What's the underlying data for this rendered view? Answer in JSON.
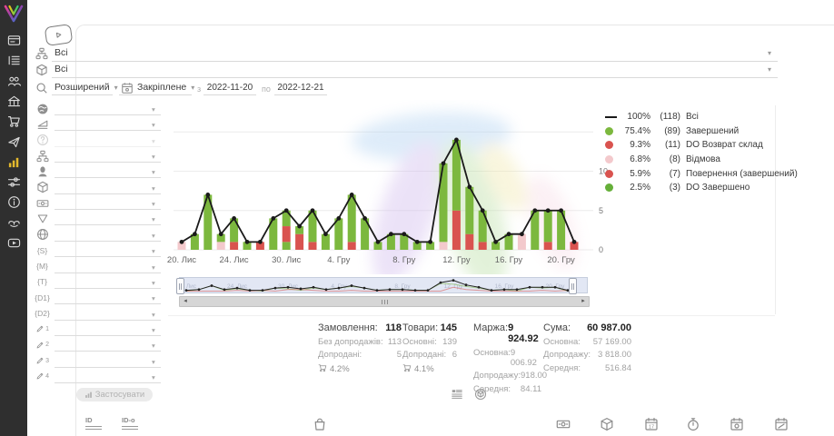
{
  "sidebar": {
    "items": [
      {
        "name": "dashboard",
        "icon": "browser",
        "active": false
      },
      {
        "name": "orders-list",
        "icon": "list",
        "active": false
      },
      {
        "name": "customers",
        "icon": "users",
        "active": false
      },
      {
        "name": "company",
        "icon": "building",
        "active": false
      },
      {
        "name": "sales",
        "icon": "cart",
        "active": false
      },
      {
        "name": "campaigns",
        "icon": "send",
        "active": false
      },
      {
        "name": "analytics",
        "icon": "chart",
        "active": true
      },
      {
        "name": "settings",
        "icon": "sliders",
        "active": false
      },
      {
        "name": "info",
        "icon": "info",
        "active": false
      },
      {
        "name": "partners",
        "icon": "hands",
        "active": false
      },
      {
        "name": "video-tutorials",
        "icon": "video",
        "active": false
      }
    ]
  },
  "topbar": {
    "selects": [
      {
        "icon": "sitemap",
        "value": "Всі"
      },
      {
        "icon": "cube",
        "value": "Всі"
      }
    ],
    "search": {
      "mode": "Розширений",
      "period": "Закріплене",
      "from_label": "з",
      "date_from": "2022-11-20",
      "to_label": "по",
      "date_to": "2022-12-21"
    }
  },
  "filters": {
    "apply_label": "Застосувати",
    "rows": [
      {
        "icon": "globe-solid",
        "disabled": false
      },
      {
        "icon": "ramp",
        "disabled": false
      },
      {
        "icon": "question",
        "disabled": true
      },
      {
        "icon": "sitemap",
        "disabled": false
      },
      {
        "icon": "person",
        "disabled": false
      },
      {
        "icon": "cube",
        "disabled": false
      },
      {
        "icon": "banknote",
        "disabled": false
      },
      {
        "icon": "funnel",
        "disabled": false
      },
      {
        "icon": "globe-wire",
        "disabled": false
      },
      {
        "icon": "token",
        "token": "{S}",
        "disabled": false
      },
      {
        "icon": "token",
        "token": "{M}",
        "disabled": false
      },
      {
        "icon": "token",
        "token": "{T}",
        "disabled": false
      },
      {
        "icon": "token",
        "token": "{D1}",
        "disabled": false
      },
      {
        "icon": "token",
        "token": "{D2}",
        "disabled": false
      },
      {
        "icon": "pencil",
        "sub": "1",
        "disabled": false
      },
      {
        "icon": "pencil",
        "sub": "2",
        "disabled": false
      },
      {
        "icon": "pencil",
        "sub": "3",
        "disabled": false
      },
      {
        "icon": "pencil",
        "sub": "4",
        "disabled": false
      }
    ]
  },
  "chart_data": {
    "type": "bar",
    "stacked": true,
    "ylim": [
      0,
      15
    ],
    "y_ticks": [
      "0",
      "5",
      "10"
    ],
    "grid": true,
    "legend_position": "right",
    "colors": {
      "green": "#7CB83E",
      "red": "#D9534F",
      "pink": "#F3C9CC",
      "line": "#1a1a1a"
    },
    "x_tick_labels": [
      {
        "i": 0,
        "label": "20. Лис"
      },
      {
        "i": 4,
        "label": "24. Лис"
      },
      {
        "i": 8,
        "label": "30. Лис"
      },
      {
        "i": 12,
        "label": "4. Гру"
      },
      {
        "i": 17,
        "label": "8. Гру"
      },
      {
        "i": 21,
        "label": "12. Гру"
      },
      {
        "i": 25,
        "label": "16. Гру"
      },
      {
        "i": 29,
        "label": "20. Гру"
      }
    ],
    "line_series": {
      "name": "Всі",
      "values": [
        1,
        2,
        7,
        2,
        4,
        1,
        1,
        4,
        5,
        3,
        5,
        2,
        4,
        7,
        4,
        1,
        2,
        2,
        1,
        1,
        11,
        14,
        8,
        5,
        1,
        2,
        2,
        5,
        5,
        5,
        1
      ]
    },
    "bar_segments": [
      [
        [
          "pink",
          1
        ]
      ],
      [
        [
          "green",
          2
        ]
      ],
      [
        [
          "green",
          7
        ]
      ],
      [
        [
          "pink",
          1
        ],
        [
          "green",
          1
        ]
      ],
      [
        [
          "red",
          1
        ],
        [
          "green",
          3
        ]
      ],
      [
        [
          "green",
          1
        ]
      ],
      [
        [
          "red",
          1
        ]
      ],
      [
        [
          "green",
          4
        ]
      ],
      [
        [
          "green",
          1
        ],
        [
          "red",
          2
        ],
        [
          "green",
          2
        ]
      ],
      [
        [
          "red",
          2
        ],
        [
          "green",
          1
        ]
      ],
      [
        [
          "red",
          1
        ],
        [
          "green",
          4
        ]
      ],
      [
        [
          "green",
          2
        ]
      ],
      [
        [
          "green",
          4
        ]
      ],
      [
        [
          "red",
          1
        ],
        [
          "green",
          6
        ]
      ],
      [
        [
          "green",
          4
        ]
      ],
      [
        [
          "green",
          1
        ]
      ],
      [
        [
          "green",
          2
        ]
      ],
      [
        [
          "green",
          2
        ]
      ],
      [
        [
          "green",
          1
        ]
      ],
      [
        [
          "green",
          1
        ]
      ],
      [
        [
          "pink",
          1
        ],
        [
          "green",
          10
        ]
      ],
      [
        [
          "red",
          5
        ],
        [
          "green",
          9
        ]
      ],
      [
        [
          "red",
          2
        ],
        [
          "green",
          6
        ]
      ],
      [
        [
          "red",
          1
        ],
        [
          "green",
          4
        ]
      ],
      [
        [
          "green",
          1
        ]
      ],
      [
        [
          "green",
          2
        ]
      ],
      [
        [
          "pink",
          2
        ]
      ],
      [
        [
          "green",
          5
        ]
      ],
      [
        [
          "red",
          1
        ],
        [
          "green",
          4
        ]
      ],
      [
        [
          "green",
          5
        ]
      ],
      [
        [
          "red",
          1
        ]
      ]
    ]
  },
  "legend": {
    "items": [
      {
        "marker": "line",
        "color": "#1a1a1a",
        "pct": "100%",
        "count": "(118)",
        "label": "Всі"
      },
      {
        "marker": "dot",
        "color": "#7CB83E",
        "pct": "75.4%",
        "count": "(89)",
        "label": "Завершений"
      },
      {
        "marker": "dot",
        "color": "#D9534F",
        "pct": "9.3%",
        "count": "(11)",
        "label": "DO Возврат склад"
      },
      {
        "marker": "dot",
        "color": "#F3C9CC",
        "pct": "6.8%",
        "count": "(8)",
        "label": "Відмова"
      },
      {
        "marker": "dot",
        "color": "#D9534F",
        "pct": "5.9%",
        "count": "(7)",
        "label": "Повернення (завершений)"
      },
      {
        "marker": "dot",
        "color": "#65AF39",
        "pct": "2.5%",
        "count": "(3)",
        "label": "DO Завершено"
      }
    ]
  },
  "stats": {
    "columns": [
      {
        "title": "Замовлення:",
        "value": "118",
        "rows": [
          {
            "label": "Без допродажів:",
            "value": "113"
          },
          {
            "label": "Допродані:",
            "value": "5"
          }
        ],
        "upsell": "4.2%"
      },
      {
        "title": "Товари:",
        "value": "145",
        "rows": [
          {
            "label": "Основні:",
            "value": "139"
          },
          {
            "label": "Допродані:",
            "value": "6"
          }
        ],
        "upsell": "4.1%"
      },
      {
        "title": "Маржа:",
        "value": "9 924.92",
        "rows": [
          {
            "label": "Основна:",
            "value": "9 006.92"
          },
          {
            "label": "Допродажу:",
            "value": "918.00"
          },
          {
            "label": "Середня:",
            "value": "84.11"
          }
        ]
      },
      {
        "title": "Сума:",
        "value": "60 987.00",
        "rows": [
          {
            "label": "Основна:",
            "value": "57 169.00"
          },
          {
            "label": "Допродажу:",
            "value": "3 818.00"
          },
          {
            "label": "Середня:",
            "value": "516.84"
          }
        ]
      }
    ]
  },
  "toggles": [
    {
      "name": "table-view",
      "icon": "table-list"
    },
    {
      "name": "products-view",
      "icon": "package-circle"
    }
  ],
  "bottom": {
    "id_headers": [
      {
        "label": "ID"
      },
      {
        "label": "ID-o"
      }
    ],
    "center_icon": "bag",
    "right_icons": [
      "banknote",
      "cube",
      "calendar-17",
      "stopwatch",
      "calendar-coin",
      "calendar-pencil"
    ]
  }
}
